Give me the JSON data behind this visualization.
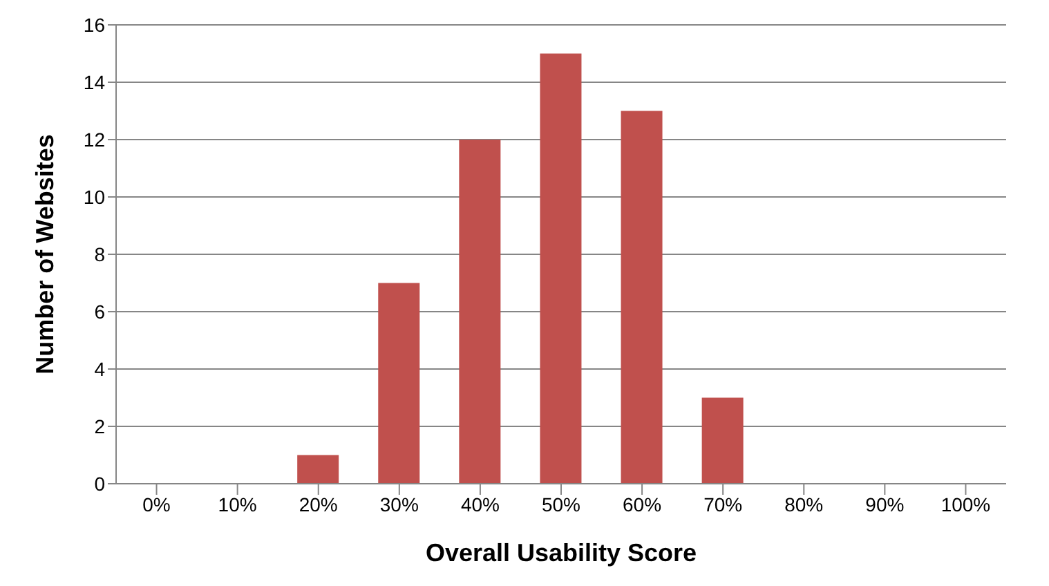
{
  "chart_data": {
    "type": "bar",
    "xlabel": "Overall Usability Score",
    "ylabel": "Number of Websites",
    "categories": [
      "0%",
      "10%",
      "20%",
      "30%",
      "40%",
      "50%",
      "60%",
      "70%",
      "80%",
      "90%",
      "100%"
    ],
    "values": [
      0,
      0,
      1,
      7,
      12,
      15,
      13,
      3,
      0,
      0,
      0
    ],
    "color": "#c0504d",
    "ylim": [
      0,
      16
    ],
    "yticks": [
      0,
      2,
      4,
      6,
      8,
      10,
      12,
      14,
      16
    ],
    "grid": "y"
  }
}
